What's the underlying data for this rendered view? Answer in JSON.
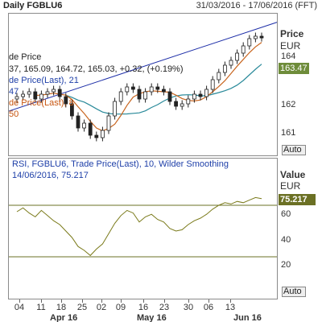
{
  "header": {
    "title": "Daily FGBLU6",
    "date_range": "31/03/2016 - 17/06/2016 (FFT)"
  },
  "price_panel": {
    "legend": {
      "line1": "de Price",
      "line2": "37, 165.09, 164.72, 165.03, +0.32, (+0.19%)",
      "line3": "de Price(Last), 21",
      "line4": "47",
      "line5": "de Price(Last), 8",
      "line6": "50"
    },
    "axis": {
      "title": "Price",
      "unit": "EUR",
      "labels": [
        "164",
        "162",
        "161"
      ],
      "current_value": "163.47",
      "auto_label": "Auto"
    },
    "colors": {
      "trend": "#1e2fa8",
      "ma_long": "#2a8a9a",
      "ma_short": "#c8651f",
      "candle": "#222222"
    }
  },
  "rsi_panel": {
    "legend": {
      "line1": "RSI, FGBLU6, Trade Price(Last),  10, Wilder Smoothing",
      "line2": "14/06/2016, 75.217"
    },
    "axis": {
      "title": "Value",
      "unit": "EUR",
      "labels": [
        "60",
        "40",
        "20"
      ],
      "current_value": "75.217",
      "auto_label": "Auto"
    },
    "levels": [
      70,
      30
    ],
    "colors": {
      "rsi": "#7a7a1a",
      "level": "#6b7024"
    }
  },
  "x_axis": {
    "days": [
      "04",
      "11",
      "18",
      "25",
      "02",
      "09",
      "16",
      "23",
      "30",
      "06",
      "13"
    ],
    "months": [
      "Apr 16",
      "May 16",
      "Jun 16"
    ]
  },
  "chart_data": {
    "type": "candlestick",
    "price_close": [
      162.6,
      162.7,
      162.8,
      162.5,
      162.7,
      162.8,
      162.9,
      162.6,
      162.3,
      161.8,
      161.3,
      161.5,
      161.0,
      160.9,
      161.2,
      161.8,
      162.4,
      162.8,
      163.0,
      162.9,
      162.5,
      162.8,
      163.0,
      162.9,
      162.8,
      162.4,
      162.2,
      162.3,
      162.5,
      162.7,
      162.6,
      162.9,
      163.3,
      163.6,
      163.9,
      164.1,
      164.4,
      164.7,
      165.0,
      165.1,
      165.03
    ],
    "rsi": [
      65,
      68,
      64,
      61,
      66,
      62,
      58,
      55,
      50,
      45,
      38,
      35,
      31,
      36,
      40,
      48,
      56,
      62,
      66,
      64,
      57,
      61,
      63,
      59,
      57,
      52,
      50,
      51,
      55,
      58,
      60,
      63,
      67,
      70,
      72,
      71,
      73,
      72,
      74,
      76,
      75.217
    ],
    "rsi_levels": [
      70,
      30
    ],
    "current_price": 163.47,
    "current_rsi": 75.217
  }
}
